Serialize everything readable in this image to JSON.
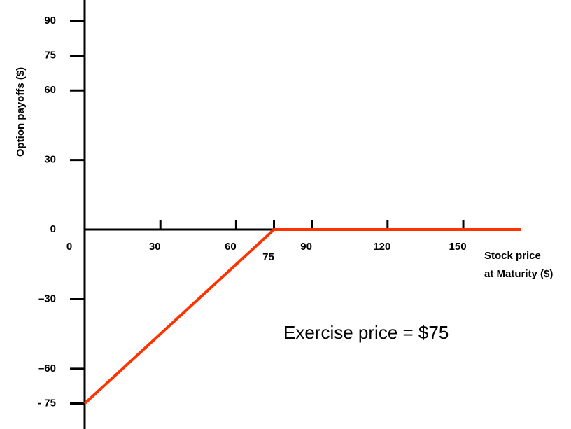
{
  "chart_data": {
    "type": "line",
    "ylabel": "Option payoffs ($)",
    "xlabel": [
      "Stock price",
      "at Maturity ($)"
    ],
    "annotation": "Exercise price = $75",
    "x": [
      0,
      75,
      173
    ],
    "series": [
      {
        "color": "#ff3300",
        "values": [
          -75,
          0,
          0
        ]
      }
    ],
    "xlim": [
      0,
      173
    ],
    "xticks": [
      0,
      30,
      60,
      75,
      90,
      120,
      150
    ],
    "ylim": [
      -86,
      99
    ],
    "yticks": [
      {
        "value": -75,
        "label": "- 75"
      },
      {
        "value": -60,
        "label": "–60"
      },
      {
        "value": -30,
        "label": "–30"
      },
      0,
      30,
      60,
      75,
      90
    ]
  }
}
